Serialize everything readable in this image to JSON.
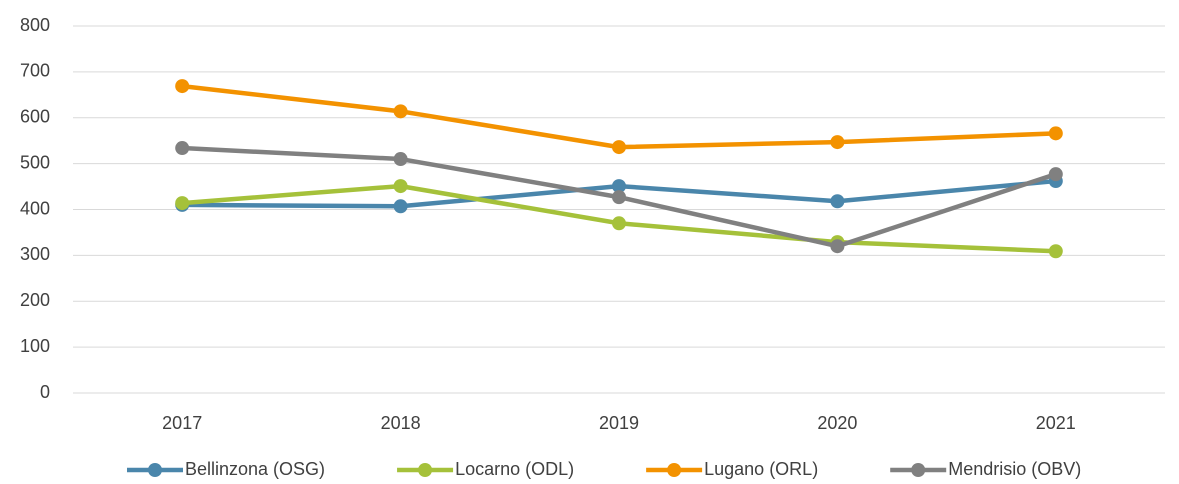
{
  "chart_data": {
    "type": "line",
    "categories": [
      "2017",
      "2018",
      "2019",
      "2020",
      "2021"
    ],
    "series": [
      {
        "name": "Bellinzona (OSG)",
        "color": "#4a86ab",
        "values": [
          410,
          407,
          451,
          418,
          462
        ]
      },
      {
        "name": "Locarno (ODL)",
        "color": "#a5c13a",
        "values": [
          414,
          451,
          370,
          329,
          309
        ]
      },
      {
        "name": "Lugano (ORL)",
        "color": "#f39200",
        "values": [
          669,
          614,
          536,
          547,
          566
        ]
      },
      {
        "name": "Mendrisio (OBV)",
        "color": "#808080",
        "values": [
          534,
          510,
          427,
          320,
          477
        ]
      }
    ],
    "ylim": [
      0,
      800
    ],
    "yticks": [
      0,
      100,
      200,
      300,
      400,
      500,
      600,
      700,
      800
    ],
    "grid": true,
    "legend": "bottom"
  }
}
